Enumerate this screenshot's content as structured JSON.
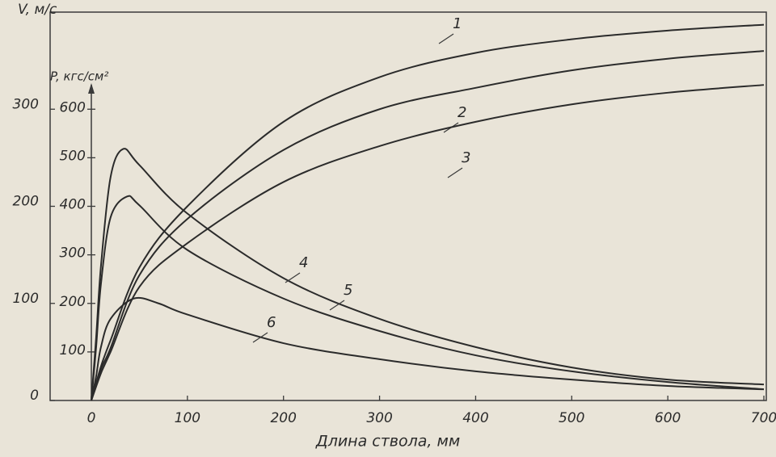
{
  "chart_data": {
    "type": "line",
    "y_label": "V, м/с",
    "y2_label": "P, кгс/см²",
    "x_label": "Длина ствола, мм",
    "xlim": [
      0,
      700
    ],
    "xticks": [
      0,
      100,
      200,
      300,
      400,
      500,
      600,
      700
    ],
    "ylim": [
      0,
      400
    ],
    "yticks": [
      0,
      100,
      200,
      300
    ],
    "y2lim": [
      0,
      800
    ],
    "y2ticks": [
      100,
      200,
      300,
      400,
      500,
      600
    ],
    "grid": false,
    "series": [
      {
        "name": "1",
        "color": "#2b2b2b",
        "x": [
          0,
          10,
          20,
          50,
          100,
          200,
          300,
          400,
          500,
          600,
          700
        ],
        "values": [
          0,
          35,
          62,
          137,
          200,
          287,
          333,
          358,
          372,
          381,
          387
        ]
      },
      {
        "name": "2",
        "color": "#2b2b2b",
        "x": [
          0,
          10,
          20,
          50,
          100,
          200,
          300,
          400,
          500,
          600,
          700
        ],
        "values": [
          0,
          32,
          54,
          129,
          187,
          258,
          300,
          322,
          340,
          352,
          360
        ]
      },
      {
        "name": "3",
        "color": "#2b2b2b",
        "x": [
          0,
          10,
          20,
          50,
          100,
          200,
          300,
          400,
          500,
          600,
          700
        ],
        "values": [
          0,
          28,
          50,
          117,
          162,
          225,
          262,
          287,
          305,
          317,
          325
        ]
      },
      {
        "name": "4",
        "color": "#2b2b2b",
        "axis": "y2",
        "x": [
          0,
          5,
          10,
          20,
          33,
          50,
          100,
          200,
          300,
          400,
          500,
          600,
          700
        ],
        "values": [
          0,
          130,
          277,
          460,
          518,
          485,
          385,
          252,
          168,
          110,
          68,
          43,
          33
        ]
      },
      {
        "name": "5",
        "color": "#2b2b2b",
        "axis": "y2",
        "x": [
          0,
          5,
          10,
          20,
          37,
          50,
          100,
          200,
          300,
          400,
          500,
          600,
          700
        ],
        "values": [
          0,
          110,
          240,
          377,
          420,
          402,
          310,
          210,
          143,
          93,
          60,
          38,
          23
        ]
      },
      {
        "name": "6",
        "color": "#2b2b2b",
        "axis": "y2",
        "x": [
          0,
          5,
          10,
          20,
          44,
          70,
          100,
          200,
          300,
          400,
          500,
          600,
          700
        ],
        "values": [
          0,
          50,
          110,
          168,
          210,
          200,
          177,
          118,
          85,
          60,
          43,
          30,
          23
        ]
      }
    ]
  }
}
